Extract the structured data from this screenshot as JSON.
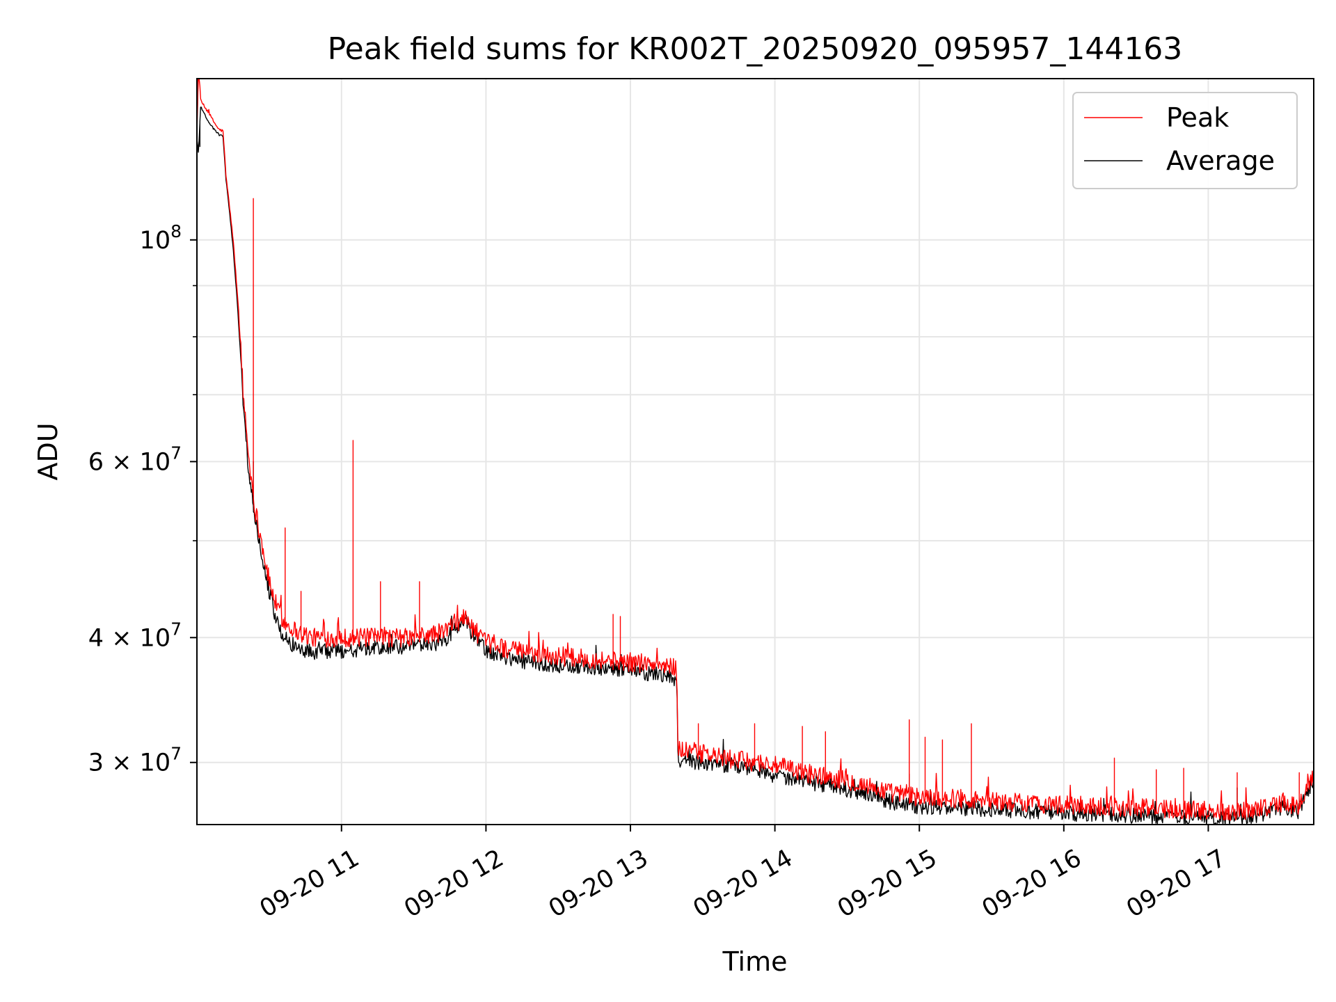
{
  "chart_data": {
    "type": "line",
    "title": "Peak field sums for KR002T_20250920_095957_144163",
    "xlabel": "Time",
    "ylabel": "ADU",
    "yscale": "log",
    "ylim": [
      26000000,
      145000000
    ],
    "xlim_hours": [
      9.9992,
      17.73
    ],
    "grid": true,
    "legend_location": "top-right",
    "x_ticks": [
      {
        "value": 11,
        "label": "09-20 11"
      },
      {
        "value": 12,
        "label": "09-20 12"
      },
      {
        "value": 13,
        "label": "09-20 13"
      },
      {
        "value": 14,
        "label": "09-20 14"
      },
      {
        "value": 15,
        "label": "09-20 15"
      },
      {
        "value": 16,
        "label": "09-20 16"
      },
      {
        "value": 17,
        "label": "09-20 17"
      }
    ],
    "y_major_ticks": [
      {
        "value": 100000000,
        "base": "10",
        "exp": "8"
      },
      {
        "value": 60000000,
        "base": "6 × 10",
        "exp": "7"
      },
      {
        "value": 40000000,
        "base": "4 × 10",
        "exp": "7"
      },
      {
        "value": 30000000,
        "base": "3 × 10",
        "exp": "7"
      }
    ],
    "y_minor_ticks": [
      90000000,
      80000000,
      70000000,
      50000000
    ],
    "series": [
      {
        "name": "Peak",
        "color": "#ff0000",
        "points": [
          [
            10.0,
            128000000
          ],
          [
            10.01,
            148000000
          ],
          [
            10.025,
            138000000
          ],
          [
            10.05,
            136000000
          ],
          [
            10.08,
            134000000
          ],
          [
            10.12,
            131000000
          ],
          [
            10.15,
            129000000
          ],
          [
            10.18,
            128500000
          ],
          [
            10.2,
            116000000
          ],
          [
            10.25,
            100000000
          ],
          [
            10.28,
            88000000
          ],
          [
            10.32,
            70000000
          ],
          [
            10.36,
            60000000
          ],
          [
            10.4,
            54000000
          ],
          [
            10.45,
            49500000
          ],
          [
            10.5,
            45500000
          ],
          [
            10.55,
            43000000
          ],
          [
            10.6,
            41500000
          ],
          [
            10.7,
            40500000
          ],
          [
            10.8,
            40000000
          ],
          [
            11.0,
            40000000
          ],
          [
            11.2,
            40000000
          ],
          [
            11.5,
            40000000
          ],
          [
            11.7,
            40500000
          ],
          [
            11.85,
            42000000
          ],
          [
            11.9,
            41000000
          ],
          [
            12.0,
            39500000
          ],
          [
            12.2,
            38800000
          ],
          [
            12.5,
            38300000
          ],
          [
            12.8,
            38000000
          ],
          [
            13.0,
            37800000
          ],
          [
            13.2,
            37500000
          ],
          [
            13.32,
            37300000
          ],
          [
            13.33,
            31000000
          ],
          [
            13.5,
            30600000
          ],
          [
            13.7,
            30200000
          ],
          [
            13.9,
            30000000
          ],
          [
            14.0,
            29800000
          ],
          [
            14.2,
            29300000
          ],
          [
            14.5,
            28800000
          ],
          [
            14.8,
            28000000
          ],
          [
            15.0,
            27700000
          ],
          [
            15.3,
            27600000
          ],
          [
            15.6,
            27400000
          ],
          [
            16.0,
            27200000
          ],
          [
            16.3,
            27100000
          ],
          [
            16.6,
            27000000
          ],
          [
            16.9,
            26900000
          ],
          [
            17.2,
            26800000
          ],
          [
            17.4,
            27100000
          ],
          [
            17.5,
            27300000
          ],
          [
            17.62,
            27100000
          ],
          [
            17.65,
            27600000
          ],
          [
            17.7,
            28600000
          ],
          [
            17.73,
            29000000
          ]
        ],
        "spikes": [
          [
            10.006,
            150000000
          ],
          [
            10.39,
            110000000
          ],
          [
            10.61,
            51500000
          ],
          [
            11.08,
            63000000
          ],
          [
            11.27,
            45500000
          ],
          [
            11.54,
            45500000
          ],
          [
            10.72,
            44500000
          ],
          [
            12.88,
            42200000
          ],
          [
            12.93,
            42000000
          ],
          [
            13.47,
            32800000
          ],
          [
            13.86,
            32800000
          ],
          [
            14.19,
            32600000
          ],
          [
            14.35,
            32200000
          ],
          [
            14.93,
            33100000
          ],
          [
            15.04,
            31800000
          ],
          [
            15.16,
            31600000
          ],
          [
            15.36,
            32800000
          ],
          [
            16.35,
            30300000
          ],
          [
            16.64,
            29500000
          ],
          [
            16.83,
            29600000
          ],
          [
            17.2,
            29300000
          ],
          [
            17.63,
            29300000
          ]
        ]
      },
      {
        "name": "Average",
        "color": "#000000",
        "points": [
          [
            10.0,
            126000000
          ],
          [
            10.01,
            122000000
          ],
          [
            10.025,
            136000000
          ],
          [
            10.05,
            134000000
          ],
          [
            10.08,
            131000000
          ],
          [
            10.12,
            129000000
          ],
          [
            10.15,
            127500000
          ],
          [
            10.18,
            127000000
          ],
          [
            10.2,
            115000000
          ],
          [
            10.25,
            98000000
          ],
          [
            10.28,
            86000000
          ],
          [
            10.32,
            68000000
          ],
          [
            10.36,
            58000000
          ],
          [
            10.4,
            53000000
          ],
          [
            10.45,
            48500000
          ],
          [
            10.5,
            44500000
          ],
          [
            10.55,
            41500000
          ],
          [
            10.6,
            40000000
          ],
          [
            10.7,
            39000000
          ],
          [
            10.8,
            38700000
          ],
          [
            11.0,
            38800000
          ],
          [
            11.2,
            39000000
          ],
          [
            11.5,
            39200000
          ],
          [
            11.7,
            39600000
          ],
          [
            11.85,
            41600000
          ],
          [
            11.9,
            40500000
          ],
          [
            12.0,
            38800000
          ],
          [
            12.2,
            38000000
          ],
          [
            12.5,
            37500000
          ],
          [
            12.8,
            37300000
          ],
          [
            13.0,
            37100000
          ],
          [
            13.2,
            36700000
          ],
          [
            13.32,
            36300000
          ],
          [
            13.33,
            30200000
          ],
          [
            13.5,
            30000000
          ],
          [
            13.7,
            29800000
          ],
          [
            13.9,
            29500000
          ],
          [
            14.0,
            29100000
          ],
          [
            14.2,
            28700000
          ],
          [
            14.5,
            28200000
          ],
          [
            14.8,
            27400000
          ],
          [
            15.0,
            27100000
          ],
          [
            15.3,
            27000000
          ],
          [
            15.6,
            26900000
          ],
          [
            16.0,
            26700000
          ],
          [
            16.3,
            26600000
          ],
          [
            16.6,
            26500000
          ],
          [
            16.9,
            26400000
          ],
          [
            17.2,
            26300000
          ],
          [
            17.4,
            26700000
          ],
          [
            17.5,
            27000000
          ],
          [
            17.62,
            26800000
          ],
          [
            17.65,
            27300000
          ],
          [
            17.7,
            28300000
          ],
          [
            17.73,
            28800000
          ]
        ],
        "spikes": [
          [
            10.02,
            124000000
          ],
          [
            10.39,
            60000000
          ],
          [
            14.93,
            29200000
          ],
          [
            17.2,
            28300000
          ]
        ]
      }
    ]
  }
}
